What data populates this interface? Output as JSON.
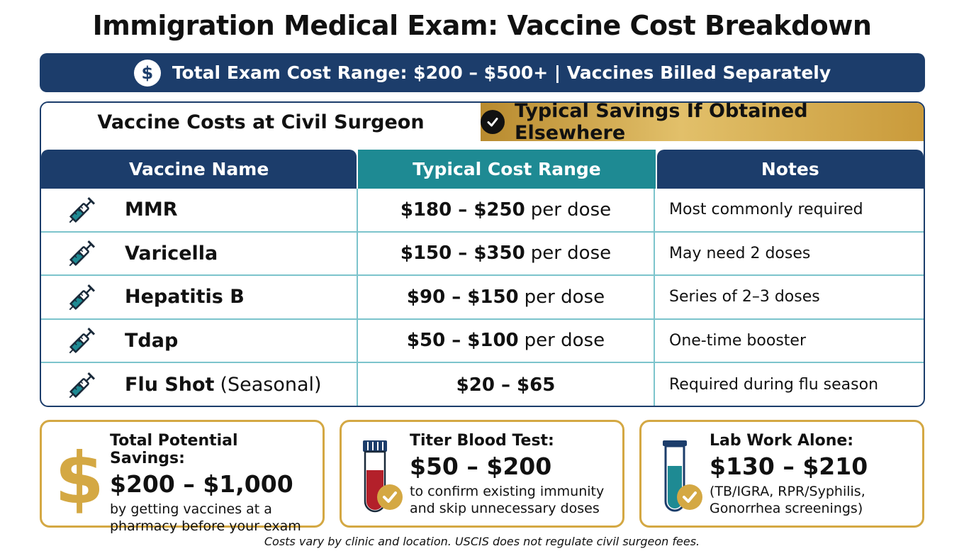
{
  "title": "Immigration Medical Exam: Vaccine Cost Breakdown",
  "banner": {
    "text": "Total Exam Cost Range: $200 – $500+ | Vaccines Billed Separately",
    "icon": "dollar-icon"
  },
  "tabs": {
    "active": "Vaccine Costs at Civil Surgeon",
    "savings": "Typical Savings If Obtained Elsewhere"
  },
  "table": {
    "headers": [
      "Vaccine Name",
      "Typical Cost Range",
      "Notes"
    ],
    "rows": [
      {
        "name": "MMR",
        "sub": "",
        "price": "$180 – $250",
        "unit": "per dose",
        "note": "Most commonly required"
      },
      {
        "name": "Varicella",
        "sub": "",
        "price": "$150 – $350",
        "unit": "per dose",
        "note": "May need 2 doses"
      },
      {
        "name": "Hepatitis B",
        "sub": "",
        "price": "$90 – $150",
        "unit": "per dose",
        "note": "Series of 2–3 doses"
      },
      {
        "name": "Tdap",
        "sub": "",
        "price": "$50 – $100",
        "unit": "per dose",
        "note": "One-time booster"
      },
      {
        "name": "Flu Shot",
        "sub": "(Seasonal)",
        "price": "$20 – $65",
        "unit": "",
        "note": "Required during flu season"
      }
    ]
  },
  "cards": [
    {
      "label": "Total Potential Savings:",
      "value": "$200 – $1,000",
      "desc": "by getting vaccines at a pharmacy before your exam",
      "icon": "dollar-sign-icon"
    },
    {
      "label": "Titer Blood Test:",
      "value": "$50 – $200",
      "desc": "to confirm existing immunity and skip unnecessary doses",
      "icon": "blood-tube-icon"
    },
    {
      "label": "Lab Work Alone:",
      "value": "$130 – $210",
      "desc": "(TB/IGRA, RPR/Syphilis, Gonorrhea screenings)",
      "icon": "test-tube-icon"
    }
  ],
  "footnote": "Costs vary by clinic and location. USCIS does not regulate civil surgeon fees.",
  "colors": {
    "navy": "#1c3d6b",
    "teal": "#1e8a93",
    "gold": "#d4a843",
    "divider": "#7cc4cc"
  }
}
